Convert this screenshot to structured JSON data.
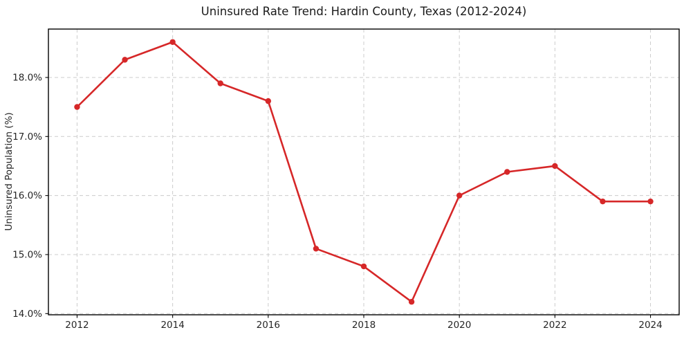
{
  "chart_data": {
    "type": "line",
    "title": "Uninsured Rate Trend: Hardin County, Texas (2012-2024)",
    "ylabel": "Uninsured Population (%)",
    "x": [
      2012,
      2013,
      2014,
      2015,
      2016,
      2017,
      2018,
      2019,
      2020,
      2021,
      2022,
      2023,
      2024
    ],
    "values": [
      17.5,
      18.3,
      18.6,
      17.9,
      17.6,
      15.1,
      14.8,
      14.2,
      16.0,
      16.4,
      16.5,
      15.9,
      15.9
    ],
    "xticks": [
      2012,
      2014,
      2016,
      2018,
      2020,
      2022,
      2024
    ],
    "yticks": [
      {
        "value": 14.0,
        "label": "14.0%"
      },
      {
        "value": 15.0,
        "label": "15.0%"
      },
      {
        "value": 16.0,
        "label": "16.0%"
      },
      {
        "value": 17.0,
        "label": "17.0%"
      },
      {
        "value": 18.0,
        "label": "18.0%"
      }
    ],
    "xlim": [
      2011.4,
      2024.6
    ],
    "ylim": [
      13.98,
      18.82
    ],
    "grid": true,
    "grid_style": "dashed",
    "legend": "none",
    "line_color": "#d62728",
    "marker": "circle",
    "grid_color": "#cccccc",
    "spine_color": "#000000",
    "text_color": "#262626"
  }
}
